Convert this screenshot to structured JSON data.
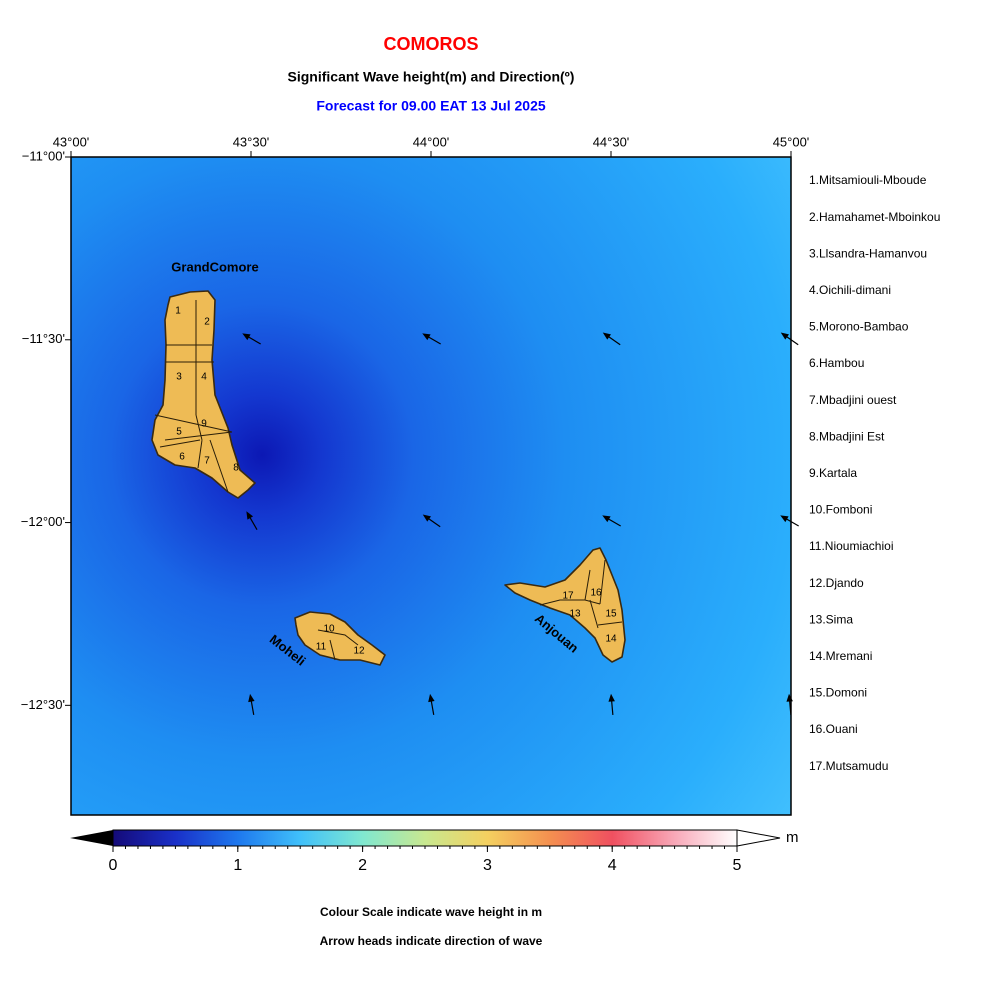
{
  "header": {
    "title": "COMOROS",
    "subtitle": "Significant Wave height(m) and Direction(º)",
    "forecast": "Forecast for  09.00 EAT 13 Jul 2025"
  },
  "map": {
    "xlim": [
      43,
      45
    ],
    "ylim": [
      -11,
      -12.8
    ],
    "xticks": [
      {
        "value": 43,
        "label": "43°00'"
      },
      {
        "value": 43.5,
        "label": "43°30'"
      },
      {
        "value": 44,
        "label": "44°00'"
      },
      {
        "value": 44.5,
        "label": "44°30'"
      },
      {
        "value": 45,
        "label": "45°00'"
      }
    ],
    "yticks": [
      {
        "value": -11,
        "label": "−11°00'"
      },
      {
        "value": -11.5,
        "label": "−11°30'"
      },
      {
        "value": -12,
        "label": "−12°00'"
      },
      {
        "value": -12.5,
        "label": "−12°30'"
      }
    ],
    "islands": [
      "GrandComore",
      "Moheli",
      "Anjouan"
    ],
    "regions": [
      "1",
      "2",
      "3",
      "4",
      "5",
      "6",
      "7",
      "8",
      "9",
      "10",
      "11",
      "12",
      "13",
      "14",
      "15",
      "16",
      "17"
    ]
  },
  "legend": [
    "1.Mitsamiouli-Mboude",
    "2.Hamahamet-Mboinkou",
    "3.Llsandra-Hamanvou",
    "4.Oichili-dimani",
    "5.Morono-Bambao",
    "6.Hambou",
    "7.Mbadjini ouest",
    "8.Mbadjini Est",
    "9.Kartala",
    "10.Fomboni",
    "11.Nioumiachioi",
    "12.Djando",
    "13.Sima",
    "14.Mremani",
    "15.Domoni",
    "16.Ouani",
    "17.Mutsamudu"
  ],
  "colorbar": {
    "ticks": [
      0,
      1,
      2,
      3,
      4,
      5
    ],
    "unit": "m"
  },
  "notes": [
    "Colour Scale indicate wave height in m",
    "Arrow heads indicate direction of wave"
  ]
}
